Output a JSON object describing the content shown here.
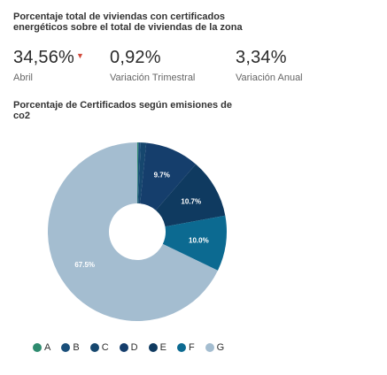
{
  "heading": {
    "line1": "Porcentaje total de viviendas con certificados",
    "line2": "energéticos sobre el total de viviendas de la zona"
  },
  "stats": [
    {
      "value": "34,56%",
      "label": "Abril",
      "trend": "down"
    },
    {
      "value": "0,92%",
      "label": "Variación Trimestral"
    },
    {
      "value": "3,34%",
      "label": "Variación Anual"
    }
  ],
  "chart_heading": {
    "line1": "Porcentaje de Certificados según emisiones de",
    "line2": "co2"
  },
  "chart_data": {
    "type": "pie",
    "donut": true,
    "categories": [
      "A",
      "B",
      "C",
      "D",
      "E",
      "F",
      "G"
    ],
    "values": [
      0.2,
      0.4,
      1.0,
      9.7,
      10.7,
      10.0,
      67.5
    ],
    "data_labels": [
      "",
      "",
      "",
      "9.7%",
      "10.7%",
      "10.0%",
      "67.5%"
    ],
    "colors": [
      "#2e8b6f",
      "#1a4f7a",
      "#16476e",
      "#153e6c",
      "#0f3a60",
      "#0c6a91",
      "#a4bdd0"
    ],
    "legend_position": "bottom"
  },
  "legend": [
    {
      "label": "A",
      "color": "#2e8b6f"
    },
    {
      "label": "B",
      "color": "#1a4f7a"
    },
    {
      "label": "C",
      "color": "#16476e"
    },
    {
      "label": "D",
      "color": "#153e6c"
    },
    {
      "label": "E",
      "color": "#0f3a60"
    },
    {
      "label": "F",
      "color": "#0c6a91"
    },
    {
      "label": "G",
      "color": "#a4bdd0"
    }
  ]
}
